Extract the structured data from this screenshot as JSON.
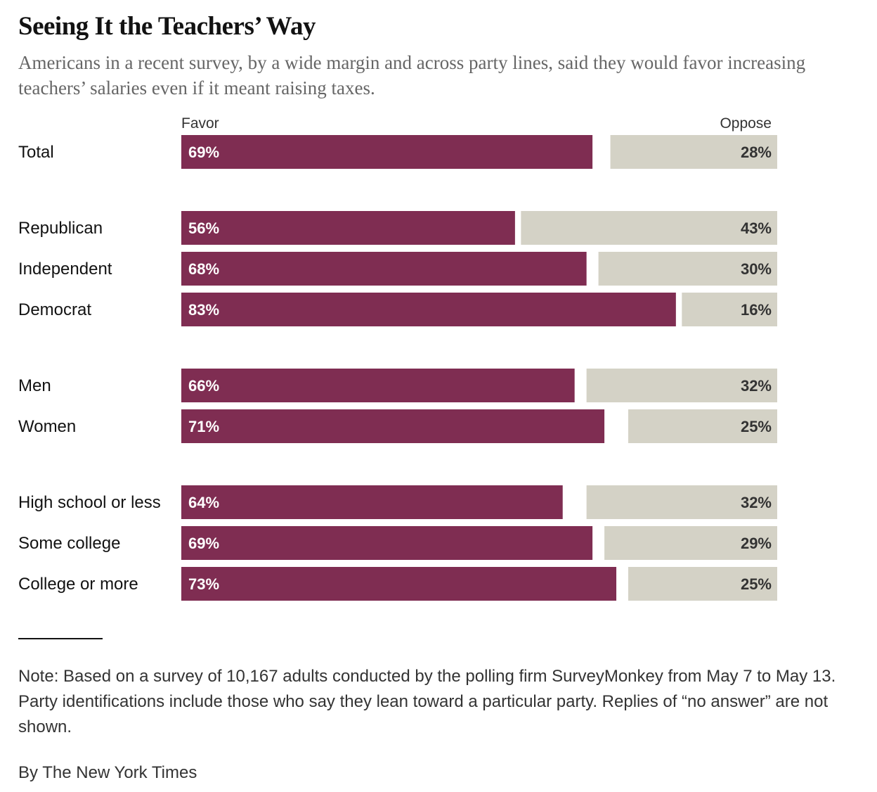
{
  "title": "Seeing It the Teachers’ Way",
  "subtitle": "Americans in a recent survey, by a wide margin and across party lines, said they would favor increasing teachers’ salaries even if it meant raising taxes.",
  "note": "Note: Based on a survey of 10,167 adults conducted by the polling firm SurveyMonkey from May 7 to May 13. Party identifications include those who say they lean toward a particular party. Replies of “no answer” are not shown.",
  "credit": "By The New York Times",
  "colors": {
    "favor": "#7f2d52",
    "oppose": "#d4d2c6",
    "favor_label": "#ffffff",
    "oppose_label": "#333333"
  },
  "chart_data": {
    "type": "bar",
    "orientation": "horizontal-diverging-stacked",
    "title": "Seeing It the Teachers’ Way",
    "legend": [
      "Favor",
      "Oppose"
    ],
    "xlim": [
      0,
      100
    ],
    "unit": "%",
    "groups": [
      {
        "rows": [
          {
            "label": "Total",
            "favor": 69,
            "favor_label": "69%",
            "oppose": 28,
            "oppose_label": "28%"
          }
        ]
      },
      {
        "rows": [
          {
            "label": "Republican",
            "favor": 56,
            "favor_label": "56%",
            "oppose": 43,
            "oppose_label": "43%"
          },
          {
            "label": "Independent",
            "favor": 68,
            "favor_label": "68%",
            "oppose": 30,
            "oppose_label": "30%"
          },
          {
            "label": "Democrat",
            "favor": 83,
            "favor_label": "83%",
            "oppose": 16,
            "oppose_label": "16%"
          }
        ]
      },
      {
        "rows": [
          {
            "label": "Men",
            "favor": 66,
            "favor_label": "66%",
            "oppose": 32,
            "oppose_label": "32%"
          },
          {
            "label": "Women",
            "favor": 71,
            "favor_label": "71%",
            "oppose": 25,
            "oppose_label": "25%"
          }
        ]
      },
      {
        "rows": [
          {
            "label": "High school or less",
            "favor": 64,
            "favor_label": "64%",
            "oppose": 32,
            "oppose_label": "32%"
          },
          {
            "label": "Some college",
            "favor": 69,
            "favor_label": "69%",
            "oppose": 29,
            "oppose_label": "29%"
          },
          {
            "label": "College or more",
            "favor": 73,
            "favor_label": "73%",
            "oppose": 25,
            "oppose_label": "25%"
          }
        ]
      }
    ]
  }
}
